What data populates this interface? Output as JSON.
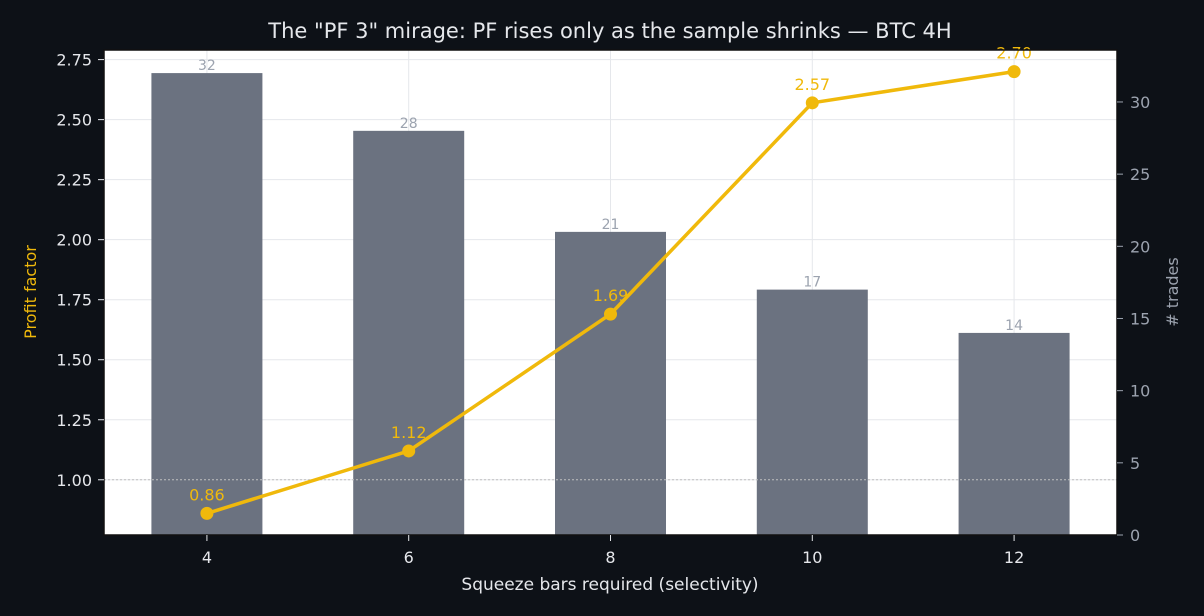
{
  "chart_data": {
    "type": "bar+line",
    "title": "The \"PF 3\" mirage: PF rises only as the sample shrinks — BTC 4H",
    "xlabel": "Squeeze bars required (selectivity)",
    "ylabel_left": "Profit factor",
    "ylabel_right": "# trades",
    "categories": [
      "4",
      "6",
      "8",
      "10",
      "12"
    ],
    "x": [
      4,
      6,
      8,
      10,
      12
    ],
    "xlim": [
      2.98,
      13.02
    ],
    "ylim_left": [
      0.77,
      2.79
    ],
    "ylim_right": [
      0,
      33.6
    ],
    "yticks_left": [
      "1.00",
      "1.25",
      "1.50",
      "1.75",
      "2.00",
      "2.25",
      "2.50",
      "2.75"
    ],
    "yticks_right": [
      "0",
      "5",
      "10",
      "15",
      "20",
      "25",
      "30"
    ],
    "reference_line_pf": 1.0,
    "grid": true,
    "legend": "none",
    "series": [
      {
        "kind": "bar",
        "axis": "right",
        "values": [
          32,
          28,
          21,
          17,
          14
        ],
        "labels": [
          "32",
          "28",
          "21",
          "17",
          "14"
        ],
        "color": "#6b7280"
      },
      {
        "kind": "line",
        "axis": "left",
        "values": [
          0.86,
          1.12,
          1.69,
          2.57,
          2.7
        ],
        "labels": [
          "0.86",
          "1.12",
          "1.69",
          "2.57",
          "2.70"
        ],
        "color": "#f0b90b"
      }
    ],
    "colors": {
      "background": "#0d1117",
      "plot_background": "#ffffff",
      "title": "#e5e7eb",
      "tick_text": "#e5e7eb",
      "right_axis_text": "#9ca3af",
      "bar_label": "#9ca3af",
      "line": "#f0b90b",
      "bars": "#6b7280",
      "grid": "#e5e7eb",
      "reference": "#c0c0c0"
    }
  }
}
